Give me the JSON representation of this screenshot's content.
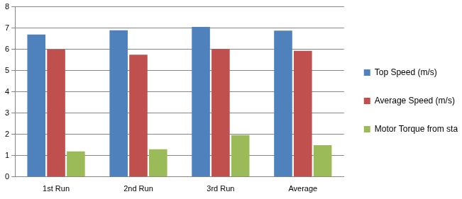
{
  "chart_data": {
    "type": "bar",
    "categories": [
      "1st Run",
      "2nd Run",
      "3rd Run",
      "Average"
    ],
    "series": [
      {
        "name": "Top Speed (m/s)",
        "color": "#4f81bd",
        "values": [
          6.7,
          6.9,
          7.05,
          6.88
        ]
      },
      {
        "name": "Average Speed (m/s)",
        "color": "#c0504d",
        "values": [
          6.0,
          5.75,
          6.02,
          5.93
        ]
      },
      {
        "name": "Motor Torque from standstill (mNm)",
        "color": "#9bbb59",
        "values": [
          1.2,
          1.3,
          1.97,
          1.49
        ]
      }
    ],
    "ylim": [
      0,
      8
    ],
    "yticks": [
      0,
      1,
      2,
      3,
      4,
      5,
      6,
      7,
      8
    ],
    "grid": true,
    "legend": "right"
  }
}
